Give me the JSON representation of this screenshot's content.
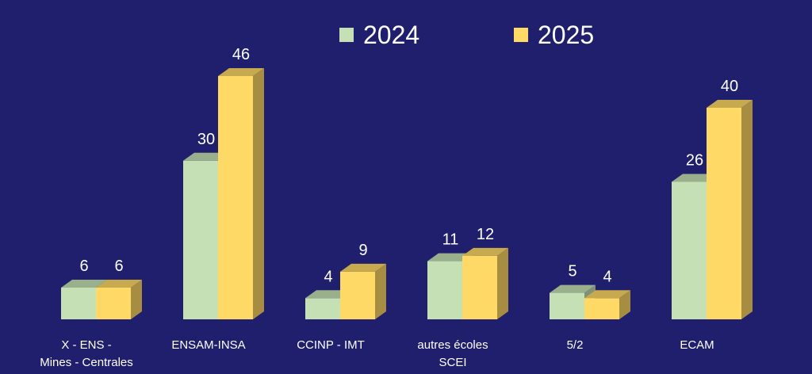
{
  "colors": {
    "background": "#201f6e",
    "text": "#ffffff"
  },
  "chart_data": {
    "type": "bar",
    "style": "3d clustered",
    "categories": [
      "X - ENS -\nMines - Centrales",
      "ENSAM-INSA",
      "CCINP - IMT",
      "autres écoles\nSCEI",
      "5/2",
      "ECAM"
    ],
    "series": [
      {
        "name": "2024",
        "values": [
          6,
          30,
          4,
          11,
          5,
          26
        ],
        "color": "#c5e0b4"
      },
      {
        "name": "2025",
        "values": [
          6,
          46,
          9,
          12,
          4,
          40
        ],
        "color": "#ffd966"
      }
    ],
    "data_labels": true,
    "legend": "top",
    "grid": false,
    "axes_visible": false
  }
}
